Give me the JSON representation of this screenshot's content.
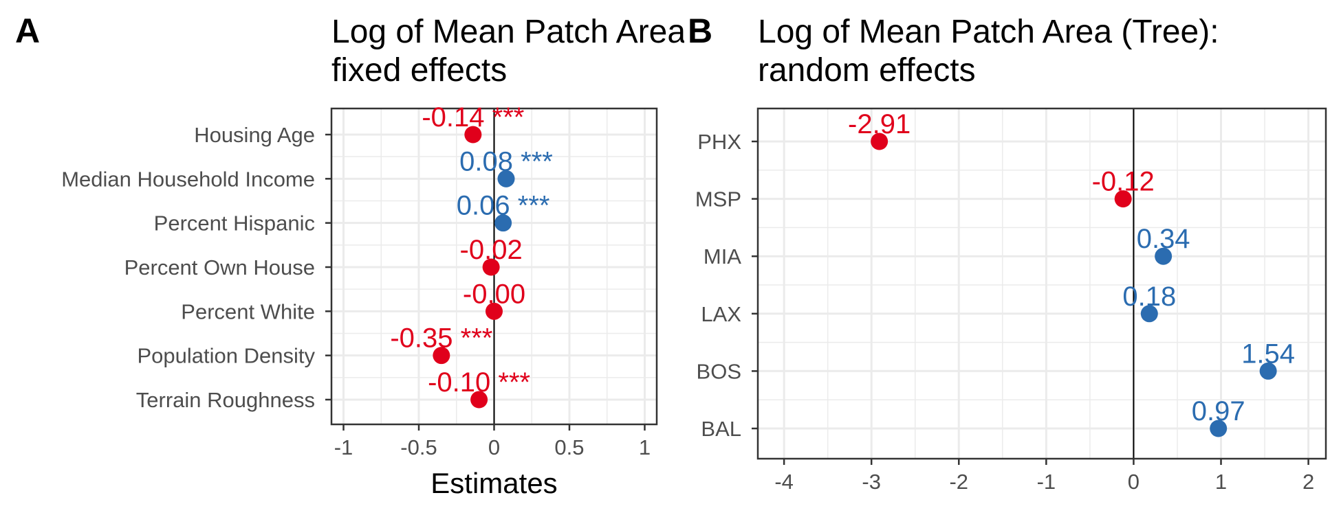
{
  "colors": {
    "positive": "#2b6cb0",
    "negative": "#e0001b",
    "grid": "#ebebeb",
    "zero": "#000000"
  },
  "chart_data": [
    {
      "panel": "A",
      "type": "scatter",
      "title_lines": [
        "Log of Mean Patch Area (Tree):",
        "fixed effects"
      ],
      "title_visible": [
        "Log of Mean Patch A",
        "fixed effects"
      ],
      "xlabel": "Estimates",
      "xlim": [
        -1.08,
        1.08
      ],
      "xticks": [
        -1,
        -0.5,
        0,
        0.5,
        1
      ],
      "xtick_labels": [
        "-1",
        "-0.5",
        "0",
        "0.5",
        "1"
      ],
      "categories": [
        "Housing Age",
        "Median Household Income",
        "Percent Hispanic",
        "Percent Own House",
        "Percent White",
        "Population Density",
        "Terrain Roughness"
      ],
      "values": [
        -0.14,
        0.08,
        0.06,
        -0.02,
        -0.0,
        -0.35,
        -0.1
      ],
      "labels": [
        "-0.14 ***",
        "0.08 ***",
        "0.06 ***",
        "-0.02",
        "-0.00",
        "-0.35 ***",
        "-0.10 ***"
      ],
      "grid": true
    },
    {
      "panel": "B",
      "type": "scatter",
      "title_lines": [
        "Log of Mean Patch Area (Tree):",
        "random effects"
      ],
      "xlabel": "",
      "xlim": [
        -4.3,
        2.2
      ],
      "xticks": [
        -4,
        -3,
        -2,
        -1,
        0,
        1,
        2
      ],
      "xtick_labels": [
        "-4",
        "-3",
        "-2",
        "-1",
        "0",
        "1",
        "2"
      ],
      "categories": [
        "PHX",
        "MSP",
        "MIA",
        "LAX",
        "BOS",
        "BAL"
      ],
      "values": [
        -2.91,
        -0.12,
        0.34,
        0.18,
        1.54,
        0.97
      ],
      "labels": [
        "-2.91",
        "-0.12",
        "0.34",
        "0.18",
        "1.54",
        "0.97"
      ],
      "grid": true
    }
  ]
}
